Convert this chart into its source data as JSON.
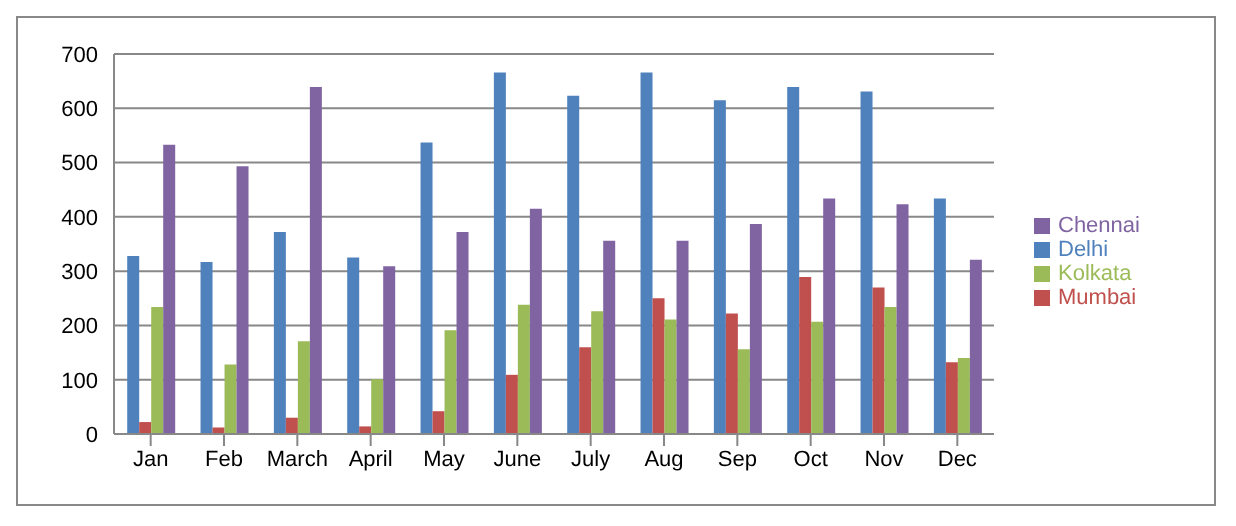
{
  "chart_data": {
    "type": "bar",
    "categories": [
      "Jan",
      "Feb",
      "March",
      "April",
      "May",
      "June",
      "July",
      "Aug",
      "Sep",
      "Oct",
      "Nov",
      "Dec"
    ],
    "series": [
      {
        "name": "Delhi",
        "color": "#4f81bd",
        "values": [
          328,
          317,
          372,
          325,
          537,
          666,
          623,
          666,
          615,
          639,
          631,
          434
        ]
      },
      {
        "name": "Mumbai",
        "color": "#c0504d",
        "values": [
          22,
          12,
          30,
          14,
          42,
          109,
          160,
          250,
          222,
          289,
          270,
          132
        ]
      },
      {
        "name": "Kolkata",
        "color": "#9bbb59",
        "values": [
          234,
          128,
          171,
          101,
          191,
          238,
          226,
          211,
          156,
          207,
          234,
          140
        ]
      },
      {
        "name": "Chennai",
        "color": "#8064a2",
        "values": [
          533,
          493,
          639,
          309,
          372,
          415,
          356,
          356,
          387,
          434,
          423,
          321
        ]
      }
    ],
    "ylim": [
      0,
      700
    ],
    "yticks": [
      0,
      100,
      200,
      300,
      400,
      500,
      600,
      700
    ],
    "grid": "y",
    "legend": "right"
  }
}
